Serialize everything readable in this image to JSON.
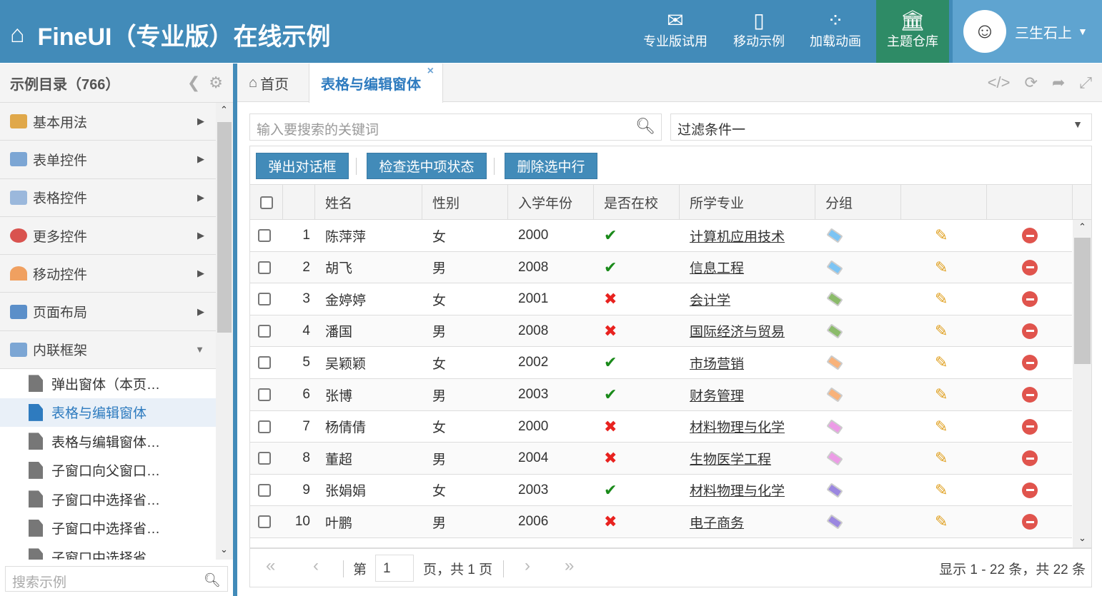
{
  "header": {
    "title": "FineUI（专业版）在线示例",
    "buttons": [
      {
        "label": "专业版试用",
        "icon": "envelope-icon"
      },
      {
        "label": "移动示例",
        "icon": "mobile-icon"
      },
      {
        "label": "加载动画",
        "icon": "spinner-icon"
      },
      {
        "label": "主题仓库",
        "icon": "bank-icon"
      }
    ],
    "user": "三生石上",
    "colors": {
      "header": "#428bb9",
      "theme_active": "#2e8b66",
      "user_bg": "#5fa4d0"
    }
  },
  "sidebar": {
    "title": "示例目录（766）",
    "items": [
      {
        "label": "基本用法"
      },
      {
        "label": "表单控件"
      },
      {
        "label": "表格控件"
      },
      {
        "label": "更多控件"
      },
      {
        "label": "移动控件"
      },
      {
        "label": "页面布局"
      },
      {
        "label": "内联框架"
      }
    ],
    "subitems": [
      "弹出窗体（本页…",
      "表格与编辑窗体",
      "表格与编辑窗体…",
      "子窗口向父窗口…",
      "子窗口中选择省…",
      "子窗口中选择省…",
      "子窗口中选择省…"
    ],
    "active_sub": 1,
    "search_placeholder": "搜索示例"
  },
  "tabs": [
    {
      "label": "首页"
    },
    {
      "label": "表格与编辑窗体",
      "close": "×"
    }
  ],
  "toolbar": {
    "keyword_placeholder": "输入要搜索的关键词",
    "filter": "过滤条件一",
    "buttons": [
      "弹出对话框",
      "检查选中项状态",
      "删除选中行"
    ]
  },
  "grid": {
    "columns": [
      "姓名",
      "性别",
      "入学年份",
      "是否在校",
      "所学专业",
      "分组"
    ],
    "rows": [
      {
        "no": "1",
        "name": "陈萍萍",
        "gender": "女",
        "year": "2000",
        "enrolled": true,
        "major": "计算机应用技术",
        "group": "#7cc4f4"
      },
      {
        "no": "2",
        "name": "胡飞",
        "gender": "男",
        "year": "2008",
        "enrolled": true,
        "major": "信息工程",
        "group": "#7cc4f4"
      },
      {
        "no": "3",
        "name": "金婷婷",
        "gender": "女",
        "year": "2001",
        "enrolled": false,
        "major": "会计学",
        "group": "#8bbb6a"
      },
      {
        "no": "4",
        "name": "潘国",
        "gender": "男",
        "year": "2008",
        "enrolled": false,
        "major": "国际经济与贸易",
        "group": "#8bbb6a"
      },
      {
        "no": "5",
        "name": "吴颖颖",
        "gender": "女",
        "year": "2002",
        "enrolled": true,
        "major": "市场营销",
        "group": "#f8b27a"
      },
      {
        "no": "6",
        "name": "张博",
        "gender": "男",
        "year": "2003",
        "enrolled": true,
        "major": "财务管理",
        "group": "#f8b27a"
      },
      {
        "no": "7",
        "name": "杨倩倩",
        "gender": "女",
        "year": "2000",
        "enrolled": false,
        "major": "材料物理与化学",
        "group": "#ec9be6"
      },
      {
        "no": "8",
        "name": "董超",
        "gender": "男",
        "year": "2004",
        "enrolled": false,
        "major": "生物医学工程",
        "group": "#ec9be6"
      },
      {
        "no": "9",
        "name": "张娟娟",
        "gender": "女",
        "year": "2003",
        "enrolled": true,
        "major": "材料物理与化学",
        "group": "#9b87e0"
      },
      {
        "no": "10",
        "name": "叶鹏",
        "gender": "男",
        "year": "2006",
        "enrolled": false,
        "major": "电子商务",
        "group": "#9b87e0"
      }
    ]
  },
  "pager": {
    "page_prefix": "第",
    "page": "1",
    "page_suffix": "页，共 1 页",
    "summary": "显示 1 - 22 条，共 22 条"
  }
}
